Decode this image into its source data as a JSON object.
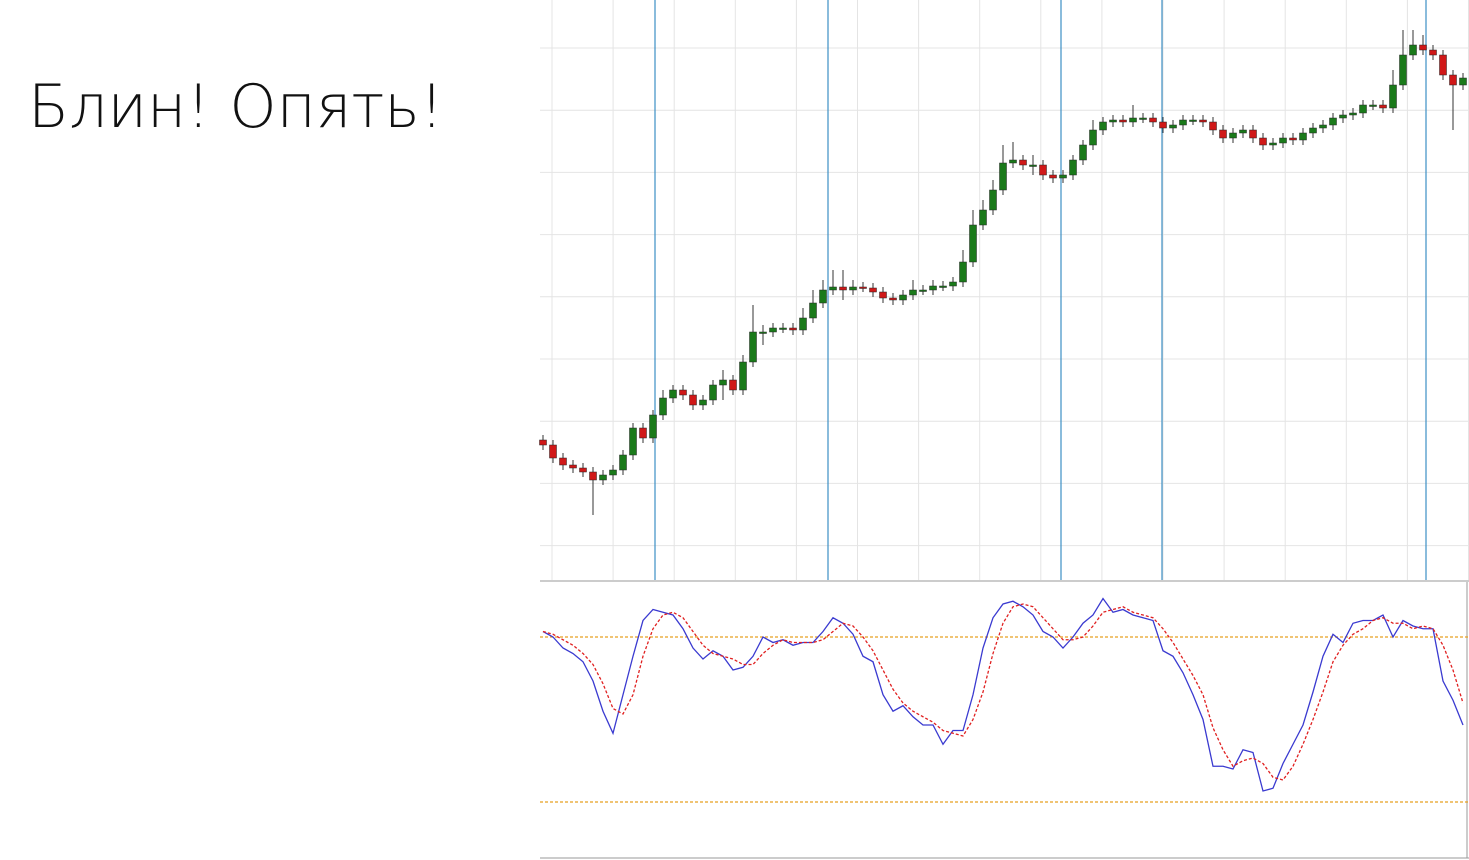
{
  "title": "Блин! Опять!",
  "chart_data": [
    {
      "type": "candlestick",
      "ylim": [
        0,
        580
      ],
      "up_color": "#1a7a1a",
      "down_color": "#d01818",
      "open": [
        140,
        135,
        122,
        115,
        112,
        108,
        100,
        105,
        110,
        125,
        152,
        142,
        165,
        182,
        190,
        185,
        175,
        180,
        195,
        200,
        190,
        218,
        248,
        248,
        252,
        252,
        250,
        262,
        277,
        290,
        293,
        290,
        293,
        292,
        288,
        282,
        280,
        285,
        290,
        290,
        294,
        294,
        298,
        318,
        355,
        370,
        390,
        417,
        420,
        415,
        415,
        405,
        402,
        405,
        420,
        435,
        450,
        458,
        460,
        458,
        462,
        462,
        458,
        452,
        455,
        460,
        460,
        458,
        450,
        442,
        447,
        450,
        442,
        435,
        437,
        442,
        440,
        447,
        452,
        455,
        462,
        465,
        467,
        475,
        475,
        472,
        495,
        525,
        535,
        530,
        525,
        505,
        495
      ],
      "high": [
        145,
        140,
        127,
        120,
        117,
        113,
        110,
        115,
        130,
        157,
        157,
        170,
        190,
        195,
        195,
        190,
        185,
        200,
        210,
        205,
        225,
        275,
        255,
        257,
        257,
        257,
        272,
        290,
        300,
        310,
        310,
        300,
        298,
        297,
        293,
        287,
        290,
        300,
        295,
        300,
        299,
        303,
        330,
        370,
        380,
        400,
        435,
        438,
        425,
        425,
        420,
        410,
        410,
        425,
        440,
        460,
        463,
        465,
        465,
        475,
        467,
        467,
        463,
        460,
        465,
        465,
        465,
        463,
        455,
        452,
        455,
        455,
        447,
        442,
        447,
        447,
        452,
        457,
        460,
        467,
        470,
        472,
        480,
        480,
        480,
        510,
        550,
        550,
        545,
        535,
        530,
        510,
        507
      ],
      "low": [
        130,
        117,
        110,
        107,
        103,
        65,
        95,
        100,
        105,
        120,
        137,
        137,
        160,
        177,
        180,
        170,
        170,
        175,
        180,
        185,
        185,
        213,
        235,
        243,
        247,
        245,
        245,
        257,
        272,
        285,
        280,
        285,
        288,
        283,
        277,
        275,
        275,
        280,
        285,
        285,
        289,
        289,
        293,
        313,
        350,
        365,
        385,
        412,
        410,
        405,
        400,
        397,
        397,
        400,
        415,
        430,
        445,
        453,
        453,
        453,
        457,
        453,
        447,
        447,
        450,
        455,
        453,
        445,
        437,
        437,
        442,
        437,
        430,
        430,
        432,
        435,
        435,
        442,
        447,
        450,
        457,
        460,
        462,
        470,
        467,
        467,
        490,
        520,
        525,
        520,
        500,
        450,
        490
      ],
      "close": [
        135,
        122,
        115,
        112,
        108,
        100,
        105,
        110,
        125,
        152,
        142,
        165,
        182,
        190,
        185,
        175,
        180,
        195,
        200,
        190,
        218,
        248,
        248,
        252,
        252,
        250,
        262,
        277,
        290,
        293,
        290,
        293,
        292,
        288,
        282,
        280,
        285,
        290,
        290,
        294,
        294,
        298,
        318,
        355,
        370,
        390,
        417,
        420,
        415,
        415,
        405,
        402,
        405,
        420,
        435,
        450,
        458,
        460,
        458,
        462,
        462,
        458,
        452,
        455,
        460,
        460,
        458,
        450,
        442,
        447,
        450,
        442,
        435,
        437,
        442,
        440,
        447,
        452,
        455,
        462,
        465,
        467,
        475,
        475,
        472,
        495,
        525,
        535,
        530,
        525,
        505,
        495,
        502
      ]
    },
    {
      "type": "line",
      "ylim": [
        0,
        100
      ],
      "levels": [
        20,
        80
      ],
      "level_color": "#e8a020",
      "series": [
        {
          "color": "#3a3ad0",
          "values": [
            82,
            80,
            76,
            74,
            71,
            64,
            53,
            45,
            59,
            73,
            86,
            90,
            89,
            88,
            83,
            76,
            72,
            75,
            73,
            68,
            69,
            73,
            80,
            78,
            79,
            77,
            78,
            78,
            82,
            87,
            85,
            81,
            73,
            71,
            59,
            53,
            55,
            51,
            48,
            48,
            41,
            46,
            46,
            59,
            76,
            87,
            92,
            93,
            91,
            88,
            82,
            80,
            76,
            80,
            85,
            88,
            94,
            89,
            90,
            88,
            87,
            86,
            75,
            73,
            67,
            59,
            50,
            33,
            33,
            32,
            39,
            38,
            24,
            25,
            34,
            41,
            48,
            60,
            73,
            81,
            78,
            85,
            86,
            86,
            88,
            80,
            86,
            84,
            83,
            83,
            64,
            57,
            48
          ]
        },
        {
          "color": "#e02020",
          "dashed": true,
          "values": [
            82,
            81,
            79,
            77,
            74,
            70,
            63,
            54,
            52,
            59,
            73,
            83,
            88,
            89,
            87,
            82,
            77,
            74,
            73,
            72,
            70,
            70,
            74,
            77,
            79,
            78,
            78,
            78,
            79,
            82,
            85,
            84,
            80,
            75,
            68,
            61,
            56,
            53,
            51,
            49,
            46,
            45,
            44,
            50,
            60,
            74,
            85,
            91,
            92,
            91,
            87,
            83,
            79,
            79,
            80,
            84,
            89,
            90,
            91,
            89,
            88,
            87,
            83,
            78,
            72,
            66,
            59,
            47,
            39,
            33,
            35,
            36,
            34,
            29,
            28,
            33,
            41,
            50,
            60,
            71,
            77,
            81,
            83,
            86,
            87,
            85,
            85,
            83,
            84,
            83,
            77,
            68,
            56
          ]
        }
      ]
    }
  ]
}
